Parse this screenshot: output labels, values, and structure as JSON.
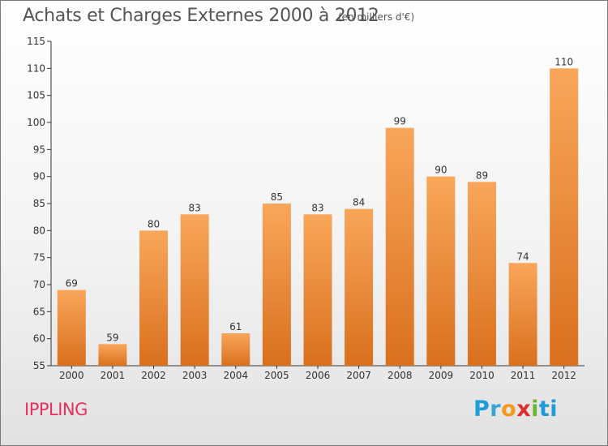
{
  "header": {
    "title": "Achats et Charges Externes 2000 à 2012",
    "subtitle": "(en milliers d'€)"
  },
  "commune": "IPPLING",
  "logo": {
    "text": "Proxiti",
    "letters": [
      "P",
      "r",
      "o",
      "x",
      "i",
      "ti"
    ]
  },
  "colors": {
    "bar_top": "#f9a65a",
    "bar_bottom": "#d9701e",
    "commune": "#e8305c"
  },
  "chart_data": {
    "type": "bar",
    "categories": [
      "2000",
      "2001",
      "2002",
      "2003",
      "2004",
      "2005",
      "2006",
      "2007",
      "2008",
      "2009",
      "2010",
      "2011",
      "2012"
    ],
    "values": [
      69,
      59,
      80,
      83,
      61,
      85,
      83,
      84,
      99,
      90,
      89,
      74,
      110
    ],
    "ylim": [
      55,
      115
    ],
    "yticks": [
      55,
      60,
      65,
      70,
      75,
      80,
      85,
      90,
      95,
      100,
      105,
      110,
      115
    ],
    "grid": false,
    "xlabel": "",
    "ylabel": ""
  }
}
